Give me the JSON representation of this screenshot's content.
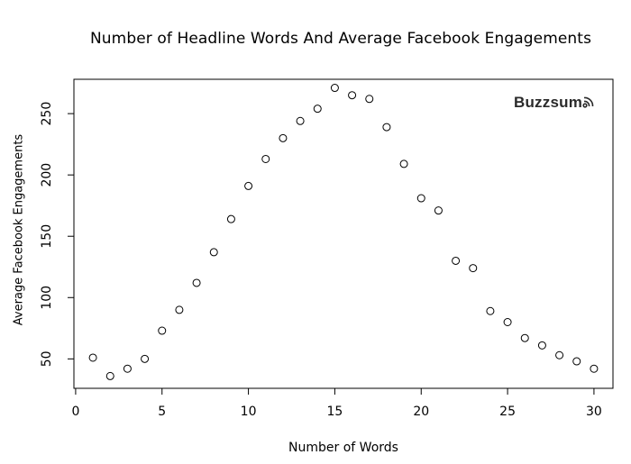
{
  "chart_data": {
    "type": "scatter",
    "title": "Number of Headline Words And Average Facebook Engagements",
    "xlabel": "Number of Words",
    "ylabel": "Average Facebook Engagements",
    "xlim": [
      -0.1,
      31.1
    ],
    "ylim": [
      26,
      278
    ],
    "x_ticks": [
      0,
      5,
      10,
      15,
      20,
      25,
      30
    ],
    "y_ticks": [
      50,
      100,
      150,
      200,
      250
    ],
    "grid": false,
    "marker": "open-circle",
    "series": [
      {
        "x": [
          1,
          2,
          3,
          4,
          5,
          6,
          7,
          8,
          9,
          10,
          11,
          12,
          13,
          14,
          15,
          16,
          17,
          18,
          19,
          20,
          21,
          22,
          23,
          24,
          25,
          26,
          27,
          28,
          29,
          30
        ],
        "y": [
          51,
          36,
          42,
          50,
          73,
          90,
          112,
          137,
          164,
          191,
          213,
          230,
          244,
          254,
          271,
          265,
          262,
          239,
          209,
          181,
          171,
          130,
          124,
          89,
          80,
          67,
          61,
          53,
          48,
          42
        ]
      }
    ]
  },
  "watermark": {
    "text": "Buzzsum",
    "icon": "wifi-signal-icon"
  }
}
